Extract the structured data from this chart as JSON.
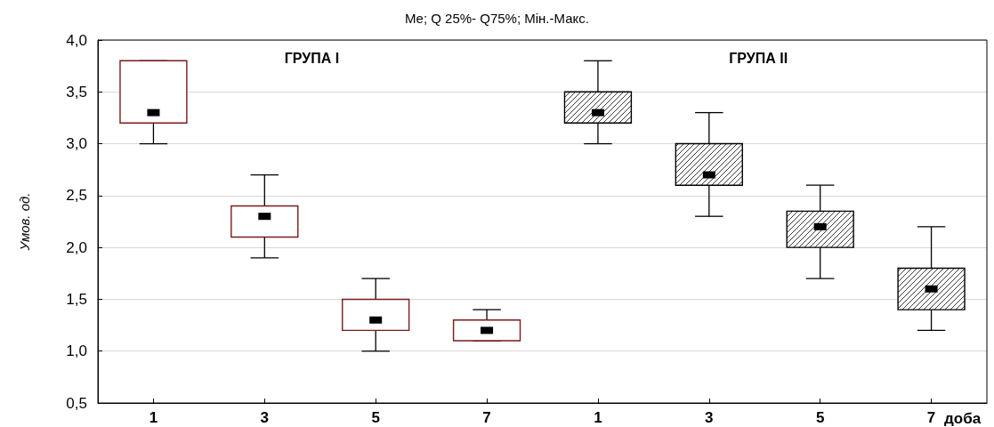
{
  "chart_data": {
    "type": "box",
    "title": "Me; Q 25%- Q75%; Мін.-Макс.",
    "ylabel": "Умов. од.",
    "xlabel": "доба",
    "categories": [
      "1",
      "3",
      "5",
      "7",
      "1",
      "3",
      "5",
      "7"
    ],
    "series": [
      {
        "color": "#7b1a1a",
        "boxes": [
          {
            "low": 3.0,
            "q1": 3.2,
            "median": 3.3,
            "q3": 3.8,
            "high": 3.8
          },
          {
            "low": 1.9,
            "q1": 2.1,
            "median": 2.3,
            "q3": 2.4,
            "high": 2.7
          },
          {
            "low": 1.0,
            "q1": 1.2,
            "median": 1.3,
            "q3": 1.5,
            "high": 1.7
          },
          {
            "low": 1.1,
            "q1": 1.1,
            "median": 1.2,
            "q3": 1.3,
            "high": 1.4
          },
          null,
          null,
          null,
          null
        ]
      },
      {
        "color": "#000000",
        "boxes": [
          null,
          null,
          null,
          null,
          {
            "low": 3.0,
            "q1": 3.2,
            "median": 3.3,
            "q3": 3.5,
            "high": 3.8
          },
          {
            "low": 2.3,
            "q1": 2.6,
            "median": 2.7,
            "q3": 3.0,
            "high": 3.3
          },
          {
            "low": 1.7,
            "q1": 2.0,
            "median": 2.2,
            "q3": 2.35,
            "high": 2.6
          },
          {
            "low": 1.2,
            "q1": 1.4,
            "median": 1.6,
            "q3": 1.8,
            "high": 2.2
          }
        ]
      }
    ],
    "ylim": [
      0.5,
      4.0
    ],
    "yticks": [
      {
        "value": 0.5,
        "label": "0,5"
      },
      {
        "value": 1.0,
        "label": "1,0"
      },
      {
        "value": 1.5,
        "label": "1,5"
      },
      {
        "value": 2.0,
        "label": "2,0"
      },
      {
        "value": 2.5,
        "label": "2,5"
      },
      {
        "value": 3.0,
        "label": "3,0"
      },
      {
        "value": 3.5,
        "label": "3,5"
      },
      {
        "value": 4.0,
        "label": "4,0"
      }
    ],
    "grid": "y",
    "marker": "square",
    "annotations": [
      "ГРУПА I",
      "ГРУПА II"
    ]
  }
}
